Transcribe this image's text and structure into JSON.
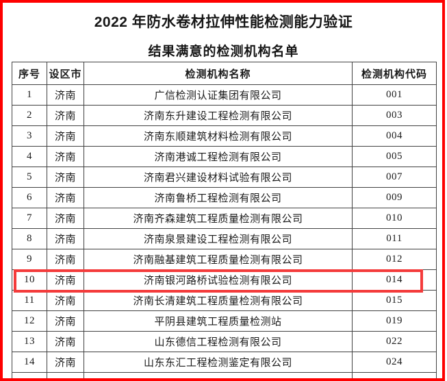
{
  "page": {
    "title": "2022 年防水卷材拉伸性能检测能力验证",
    "subtitle": "结果满意的检测机构名单"
  },
  "table": {
    "columns": [
      "序号",
      "设区市",
      "检测机构名称",
      "检测机构代码"
    ],
    "rows": [
      {
        "no": "1",
        "city": "济南",
        "name": "广信检测认证集团有限公司",
        "code": "001"
      },
      {
        "no": "2",
        "city": "济南",
        "name": "济南东升建设工程检测有限公司",
        "code": "003"
      },
      {
        "no": "3",
        "city": "济南",
        "name": "济南东顺建筑材料检测有限公司",
        "code": "004"
      },
      {
        "no": "4",
        "city": "济南",
        "name": "济南港诚工程检测有限公司",
        "code": "005"
      },
      {
        "no": "5",
        "city": "济南",
        "name": "济南君兴建设材料试验有限公司",
        "code": "007"
      },
      {
        "no": "6",
        "city": "济南",
        "name": "济南鲁桥工程检测有限公司",
        "code": "009"
      },
      {
        "no": "7",
        "city": "济南",
        "name": "济南齐森建筑工程质量检测有限公司",
        "code": "010"
      },
      {
        "no": "8",
        "city": "济南",
        "name": "济南泉景建设工程检测有限公司",
        "code": "011"
      },
      {
        "no": "9",
        "city": "济南",
        "name": "济南融基建筑工程质量检测有限公司",
        "code": "012"
      },
      {
        "no": "10",
        "city": "济南",
        "name": "济南银河路桥试验检测有限公司",
        "code": "014"
      },
      {
        "no": "11",
        "city": "济南",
        "name": "济南长清建筑工程质量检测有限公司",
        "code": "015"
      },
      {
        "no": "12",
        "city": "济南",
        "name": "平阴县建筑工程质量检测站",
        "code": "019"
      },
      {
        "no": "13",
        "city": "济南",
        "name": "山东德信工程检测有限公司",
        "code": "022"
      },
      {
        "no": "14",
        "city": "济南",
        "name": "山东东汇工程检测鉴定有限公司",
        "code": "024"
      }
    ],
    "highlighted_row_no": "10"
  },
  "colors": {
    "frame_red": "#fe0000",
    "highlight_red": "#f43b3b",
    "table_border": "#414141",
    "text": "#1a1a1a"
  }
}
